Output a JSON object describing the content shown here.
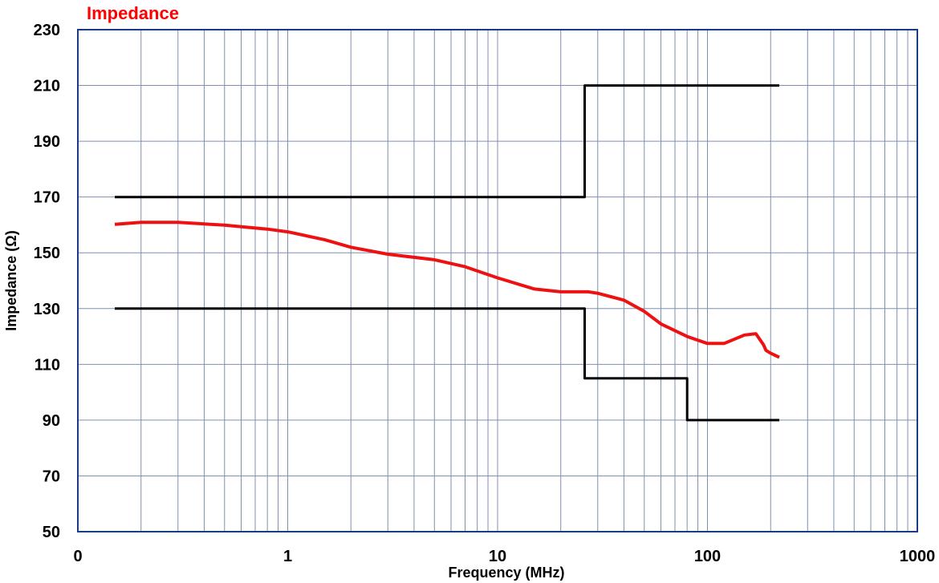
{
  "chart_data": {
    "type": "line",
    "title": "Impedance",
    "xlabel": "Frequency (MHz)",
    "ylabel": "Impedance (Ω)",
    "x_scale": "log",
    "xlim": [
      0.1,
      1000
    ],
    "ylim": [
      50,
      230
    ],
    "grid": true,
    "x_tick_labels": [
      "0",
      "1",
      "10",
      "100",
      "1000"
    ],
    "y_tick_labels": [
      "50",
      "70",
      "90",
      "110",
      "130",
      "150",
      "170",
      "190",
      "210",
      "230"
    ],
    "colors": {
      "title": "#ff0000",
      "measured": "#ee1111",
      "limits": "#000000",
      "grid": "#7f8fb0",
      "axes": "#1a3a8a"
    },
    "series": [
      {
        "role": "measured",
        "x": [
          0.15,
          0.2,
          0.3,
          0.5,
          0.8,
          1.0,
          1.5,
          2.0,
          3.0,
          5.0,
          7.0,
          10,
          15,
          20,
          27,
          30,
          40,
          50,
          60,
          80,
          100,
          120,
          150,
          170,
          185,
          190,
          200,
          220
        ],
        "y": [
          160.2,
          160.9,
          160.9,
          159.9,
          158.5,
          157.5,
          154.7,
          152.0,
          149.5,
          147.5,
          145.0,
          141.0,
          137.0,
          136.0,
          136.0,
          135.5,
          133.0,
          129.0,
          124.5,
          120.0,
          117.5,
          117.5,
          120.5,
          121.0,
          117.0,
          115.0,
          114.0,
          112.5
        ]
      },
      {
        "role": "upper-limit",
        "x": [
          0.15,
          26,
          26,
          220
        ],
        "y": [
          170,
          170,
          210,
          210
        ]
      },
      {
        "role": "lower-limit",
        "x": [
          0.15,
          26,
          26,
          80,
          80,
          220
        ],
        "y": [
          130,
          130,
          105,
          105,
          90,
          90
        ]
      }
    ]
  }
}
